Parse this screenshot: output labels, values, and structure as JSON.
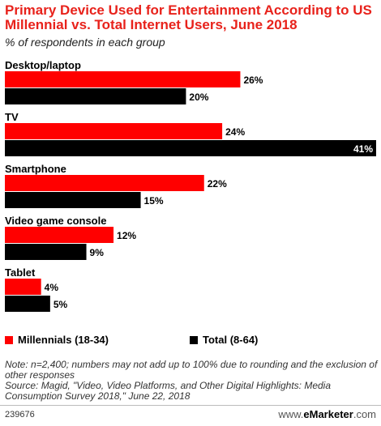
{
  "header": {
    "title": "Primary Device Used for Entertainment According to US Millennial vs. Total Internet Users, June 2018",
    "subtitle": "% of respondents in each group"
  },
  "colors": {
    "millennials": "#ff0000",
    "total": "#000000"
  },
  "chart_data": {
    "type": "bar",
    "orientation": "horizontal",
    "title": "Primary Device Used for Entertainment According to US Millennial vs. Total Internet Users, June 2018",
    "subtitle": "% of respondents in each group",
    "categories": [
      "Desktop/laptop",
      "TV",
      "Smartphone",
      "Video game console",
      "Tablet"
    ],
    "series": [
      {
        "name": "Millennials (18-34)",
        "values": [
          26,
          24,
          22,
          12,
          4
        ]
      },
      {
        "name": "Total (8-64)",
        "values": [
          20,
          41,
          15,
          9,
          5
        ]
      }
    ],
    "value_suffix": "%",
    "xlim": [
      0,
      41
    ],
    "grid": false,
    "legend_position": "bottom"
  },
  "footer": {
    "note": "Note: n=2,400; numbers may not add up to 100% due to rounding and the exclusion of other responses",
    "source": "Source: Magid, \"Video, Video Platforms, and Other Digital Highlights: Media Consumption Survey 2018,\" June 22, 2018",
    "chart_id": "239676",
    "brand_prefix": "www.",
    "brand_name": "eMarketer",
    "brand_suffix": ".com"
  }
}
